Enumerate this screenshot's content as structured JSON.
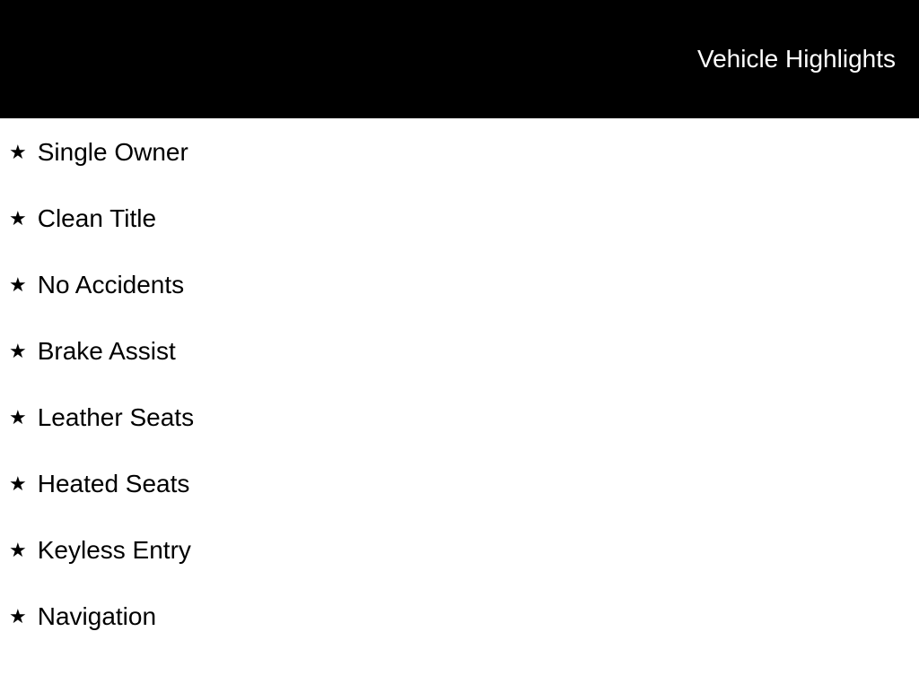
{
  "header": {
    "title": "Vehicle Highlights"
  },
  "highlights": {
    "items": [
      {
        "label": "Single Owner"
      },
      {
        "label": "Clean Title"
      },
      {
        "label": "No Accidents"
      },
      {
        "label": "Brake Assist"
      },
      {
        "label": "Leather Seats"
      },
      {
        "label": "Heated Seats"
      },
      {
        "label": "Keyless Entry"
      },
      {
        "label": "Navigation"
      }
    ]
  },
  "colors": {
    "header_bg": "#000000",
    "header_text": "#ffffff",
    "body_bg": "#ffffff",
    "text": "#000000"
  }
}
